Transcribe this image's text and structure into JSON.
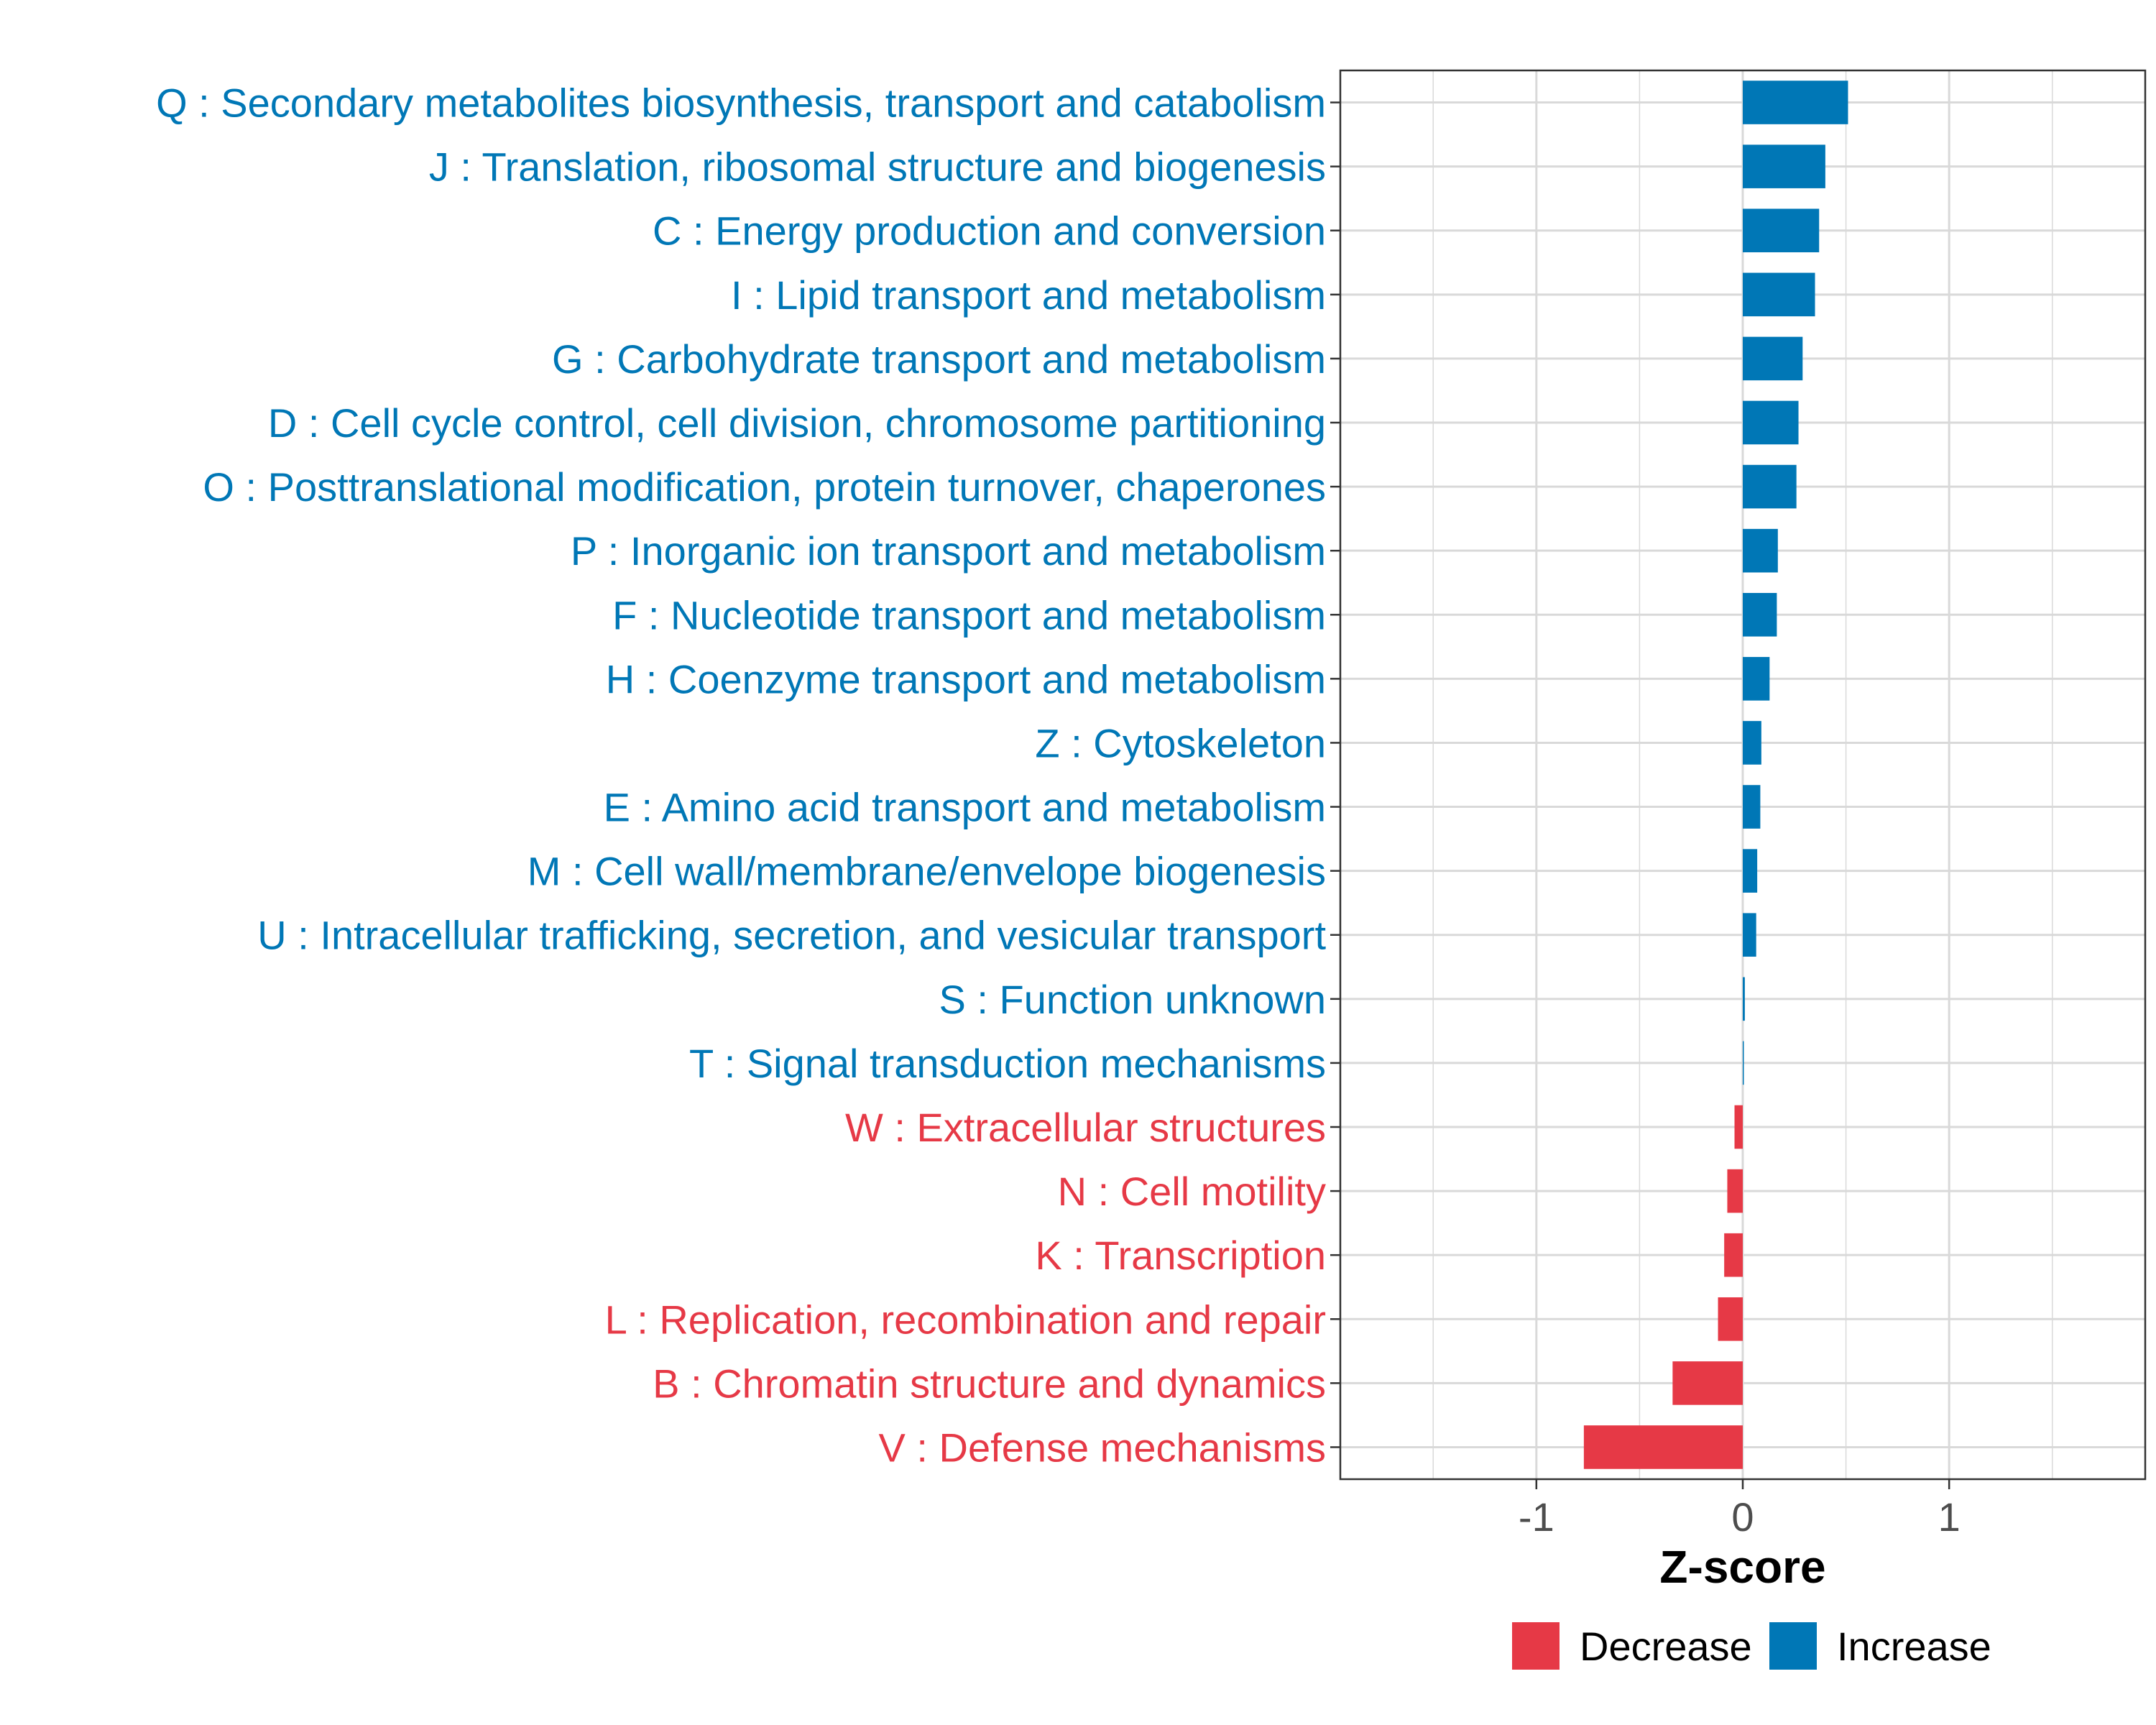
{
  "chart_data": {
    "type": "bar",
    "orientation": "horizontal",
    "title": "",
    "xlabel": "Z-score",
    "ylabel": "",
    "xlim": [
      -1.95,
      1.95
    ],
    "xticks": [
      -1,
      0,
      1
    ],
    "xtick_labels": [
      "-1",
      "0",
      "1"
    ],
    "grid": true,
    "categories": [
      "Q : Secondary metabolites biosynthesis, transport and catabolism",
      "J : Translation, ribosomal structure and biogenesis",
      "C : Energy production and conversion",
      "I : Lipid transport and metabolism",
      "G : Carbohydrate transport and metabolism",
      "D : Cell cycle control, cell division, chromosome partitioning",
      "O : Posttranslational modification, protein turnover, chaperones",
      "P : Inorganic ion transport and metabolism",
      "F : Nucleotide transport and metabolism",
      "H : Coenzyme transport and metabolism",
      "Z : Cytoskeleton",
      "E : Amino acid transport and metabolism",
      "M : Cell wall/membrane/envelope biogenesis",
      "U : Intracellular trafficking, secretion, and vesicular transport",
      "S : Function unknown",
      "T : Signal transduction mechanisms",
      "W : Extracellular structures",
      "N : Cell motility",
      "K : Transcription",
      "L : Replication, recombination and repair",
      "B : Chromatin structure and dynamics",
      "V : Defense mechanisms"
    ],
    "values": [
      0.51,
      0.4,
      0.37,
      0.35,
      0.29,
      0.27,
      0.26,
      0.17,
      0.165,
      0.13,
      0.09,
      0.085,
      0.07,
      0.065,
      0.01,
      0.005,
      -0.04,
      -0.075,
      -0.09,
      -0.12,
      -0.34,
      -0.77
    ],
    "groups": [
      "Increase",
      "Increase",
      "Increase",
      "Increase",
      "Increase",
      "Increase",
      "Increase",
      "Increase",
      "Increase",
      "Increase",
      "Increase",
      "Increase",
      "Increase",
      "Increase",
      "Increase",
      "Increase",
      "Decrease",
      "Decrease",
      "Decrease",
      "Decrease",
      "Decrease",
      "Decrease"
    ],
    "legend": {
      "position": "bottom",
      "entries": [
        {
          "label": "Decrease",
          "color": "#E63946"
        },
        {
          "label": "Increase",
          "color": "#0077B6"
        }
      ]
    }
  },
  "colors": {
    "increase": "#0077B6",
    "decrease": "#E63946",
    "grid": "#d9d9d9",
    "axis_text": "#4d4d4d"
  }
}
